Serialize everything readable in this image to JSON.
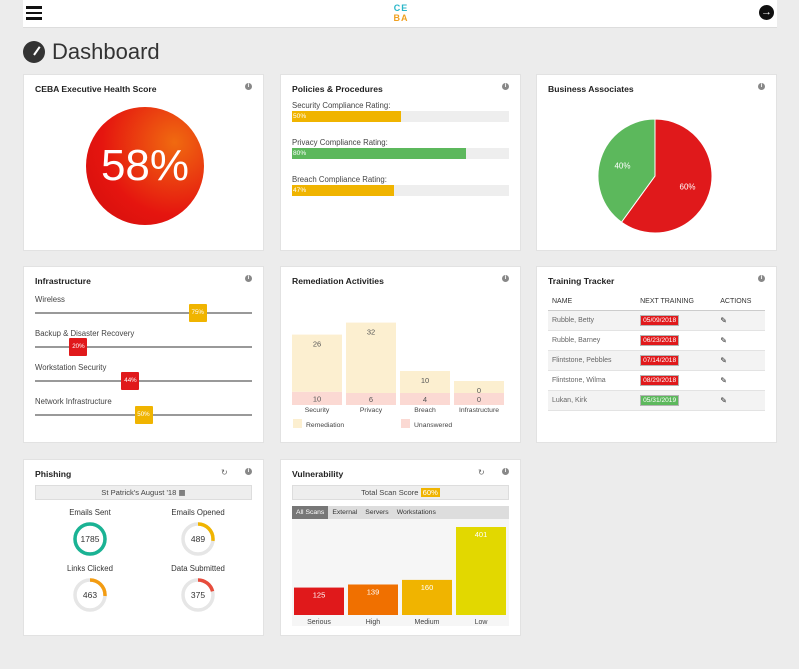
{
  "header": {
    "logo_line1": "CE",
    "logo_line2": "BA",
    "menu_icon": "hamburger-icon",
    "logout_icon": "arrow-right-circle-icon"
  },
  "page": {
    "title": "Dashboard",
    "icon": "dashboard-gauge-icon"
  },
  "health": {
    "title": "CEBA Executive Health Score",
    "value": "58%"
  },
  "policies": {
    "title": "Policies & Procedures",
    "items": [
      {
        "label": "Security Compliance Rating:",
        "value": 50,
        "text": "50%",
        "color": "#f0b400"
      },
      {
        "label": "Privacy Compliance Rating:",
        "value": 80,
        "text": "80%",
        "color": "#5cb85c"
      },
      {
        "label": "Breach Compliance Rating:",
        "value": 47,
        "text": "47%",
        "color": "#f0b400"
      }
    ]
  },
  "associates": {
    "title": "Business Associates",
    "slices": [
      {
        "label": "60%",
        "value": 60,
        "color": "#e0191b"
      },
      {
        "label": "40%",
        "value": 40,
        "color": "#5cb85c"
      }
    ]
  },
  "infrastructure": {
    "title": "Infrastructure",
    "items": [
      {
        "label": "Wireless",
        "value": 75,
        "text": "75%",
        "color": "#f0b400"
      },
      {
        "label": "Backup & Disaster Recovery",
        "value": 20,
        "text": "20%",
        "color": "#e0191b"
      },
      {
        "label": "Workstation Security",
        "value": 44,
        "text": "44%",
        "color": "#e0191b"
      },
      {
        "label": "Network Infrastructure",
        "value": 50,
        "text": "50%",
        "color": "#f0b400"
      }
    ]
  },
  "remediation": {
    "title": "Remediation Activities",
    "categories": [
      "Security",
      "Privacy",
      "Breach",
      "Infrastructure"
    ],
    "remediation": [
      26,
      32,
      10,
      0
    ],
    "unanswered": [
      10,
      6,
      4,
      0
    ],
    "legend": [
      "Remediation",
      "Unanswered"
    ]
  },
  "training": {
    "title": "Training Tracker",
    "columns": [
      "NAME",
      "NEXT TRAINING",
      "ACTIONS"
    ],
    "rows": [
      {
        "name": "Rubble, Betty",
        "date": "05/09/2018",
        "color": "#e0191b"
      },
      {
        "name": "Rubble, Barney",
        "date": "06/23/2018",
        "color": "#e0191b"
      },
      {
        "name": "Flintstone, Pebbles",
        "date": "07/14/2018",
        "color": "#e0191b"
      },
      {
        "name": "Flintstone, Wilma",
        "date": "08/29/2018",
        "color": "#e0191b"
      },
      {
        "name": "Lukan, Kirk",
        "date": "05/31/2019",
        "color": "#5cb85c"
      }
    ]
  },
  "phishing": {
    "title": "Phishing",
    "campaign": "St Patrick's August '18",
    "gauges": [
      {
        "label": "Emails Sent",
        "value": "1785",
        "pct": 100,
        "color": "#1ab394"
      },
      {
        "label": "Emails Opened",
        "value": "489",
        "pct": 27,
        "color": "#f0b400"
      },
      {
        "label": "Links Clicked",
        "value": "463",
        "pct": 26,
        "color": "#f39c12"
      },
      {
        "label": "Data Submitted",
        "value": "375",
        "pct": 21,
        "color": "#e74c3c"
      }
    ]
  },
  "vulnerability": {
    "title": "Vulnerability",
    "score_label": "Total Scan Score",
    "score": "60%",
    "tabs": [
      "All Scans",
      "External",
      "Servers",
      "Workstations"
    ],
    "chart_data": {
      "type": "bar",
      "categories": [
        "Serious",
        "High",
        "Medium",
        "Low"
      ],
      "values": [
        125,
        139,
        160,
        401
      ],
      "colors": [
        "#e0191b",
        "#f07000",
        "#f0b400",
        "#e2d800"
      ]
    }
  }
}
